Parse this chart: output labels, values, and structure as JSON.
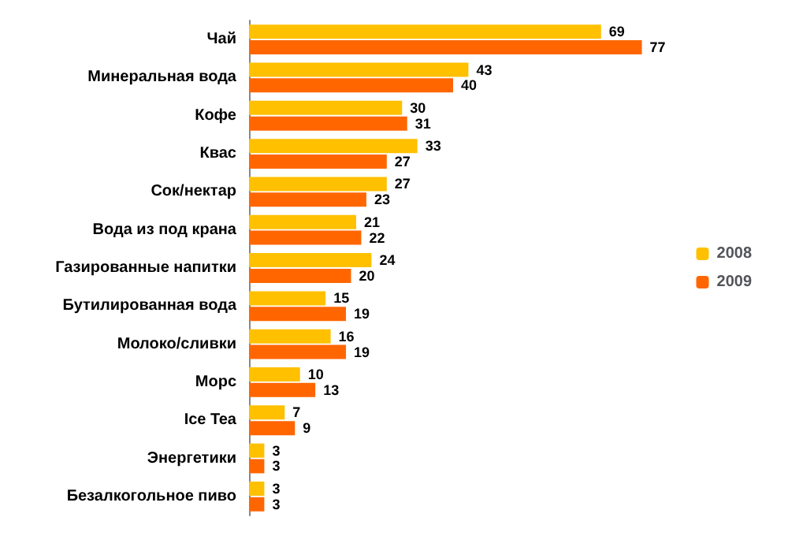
{
  "chart_data": {
    "type": "bar",
    "orientation": "horizontal",
    "categories": [
      "Чай",
      "Минеральная вода",
      "Кофе",
      "Квас",
      "Сок/нектар",
      "Вода из под крана",
      "Газированные напитки",
      "Бутилированная вода",
      "Молоко/сливки",
      "Морс",
      "Ice Tea",
      "Энергетики",
      "Безалкогольное пиво"
    ],
    "series": [
      {
        "name": "2008",
        "color": "#ffc000",
        "values": [
          69,
          43,
          30,
          33,
          27,
          21,
          24,
          15,
          16,
          10,
          7,
          3,
          3
        ]
      },
      {
        "name": "2009",
        "color": "#ff6600",
        "values": [
          77,
          40,
          31,
          27,
          23,
          22,
          20,
          19,
          19,
          13,
          9,
          3,
          3
        ]
      }
    ],
    "data_labels": true,
    "legend": "right",
    "grid": false
  }
}
